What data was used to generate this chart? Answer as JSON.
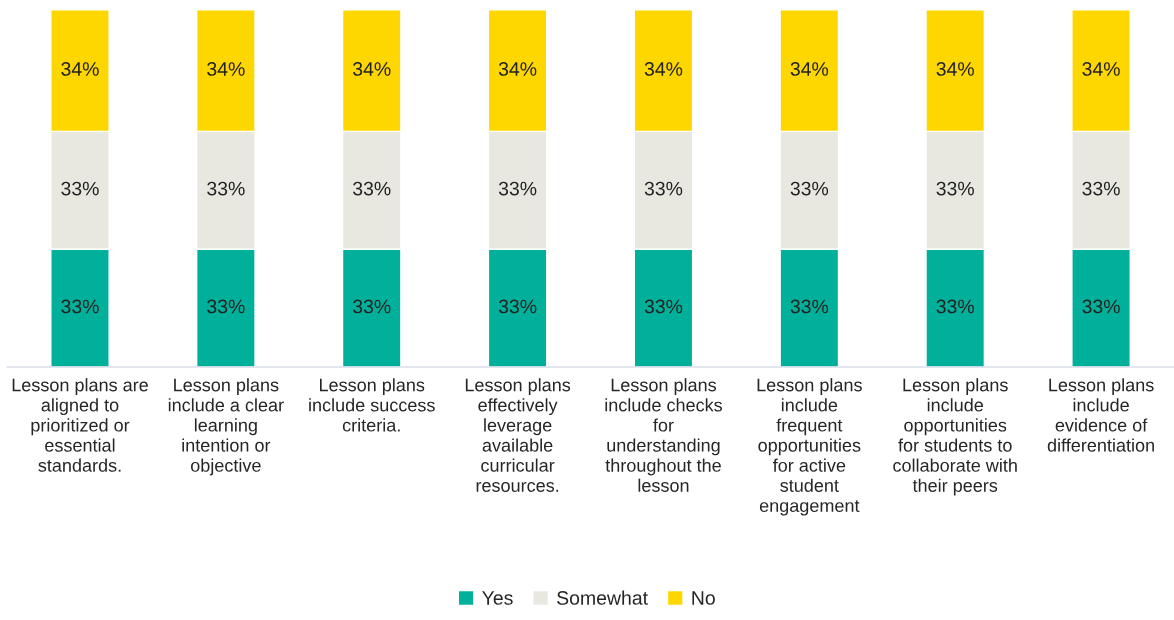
{
  "chart_data": {
    "type": "bar",
    "stacked": true,
    "legend": "bottom",
    "categories": [
      "Lesson plans are\naligned to\nprioritized or\nessential\nstandards.",
      "Lesson plans\ninclude a clear\nlearning\nintention or\nobjective",
      "Lesson plans\ninclude success\ncriteria.",
      "Lesson plans\neffectively\nleverage\navailable\ncurricular\nresources.",
      "Lesson plans\ninclude checks\nfor\nunderstanding\nthroughout the\nlesson",
      "Lesson plans\ninclude\nfrequent\nopportunities\nfor active\nstudent\nengagement",
      "Lesson plans\ninclude\nopportunities\nfor students to\ncollaborate with\ntheir peers",
      "Lesson plans\ninclude\nevidence of\ndifferentiation"
    ],
    "series": [
      {
        "name": "Yes",
        "color": "#00b09b",
        "values": [
          33,
          33,
          33,
          33,
          33,
          33,
          33,
          33
        ],
        "value_labels": [
          "33%",
          "33%",
          "33%",
          "33%",
          "33%",
          "33%",
          "33%",
          "33%"
        ]
      },
      {
        "name": "Somewhat",
        "color": "#e8e8e0",
        "values": [
          33,
          33,
          33,
          33,
          33,
          33,
          33,
          33
        ],
        "value_labels": [
          "33%",
          "33%",
          "33%",
          "33%",
          "33%",
          "33%",
          "33%",
          "33%"
        ]
      },
      {
        "name": "No",
        "color": "#ffd700",
        "values": [
          34,
          34,
          34,
          34,
          34,
          34,
          34,
          34
        ],
        "value_labels": [
          "34%",
          "34%",
          "34%",
          "34%",
          "34%",
          "34%",
          "34%",
          "34%"
        ]
      }
    ]
  }
}
